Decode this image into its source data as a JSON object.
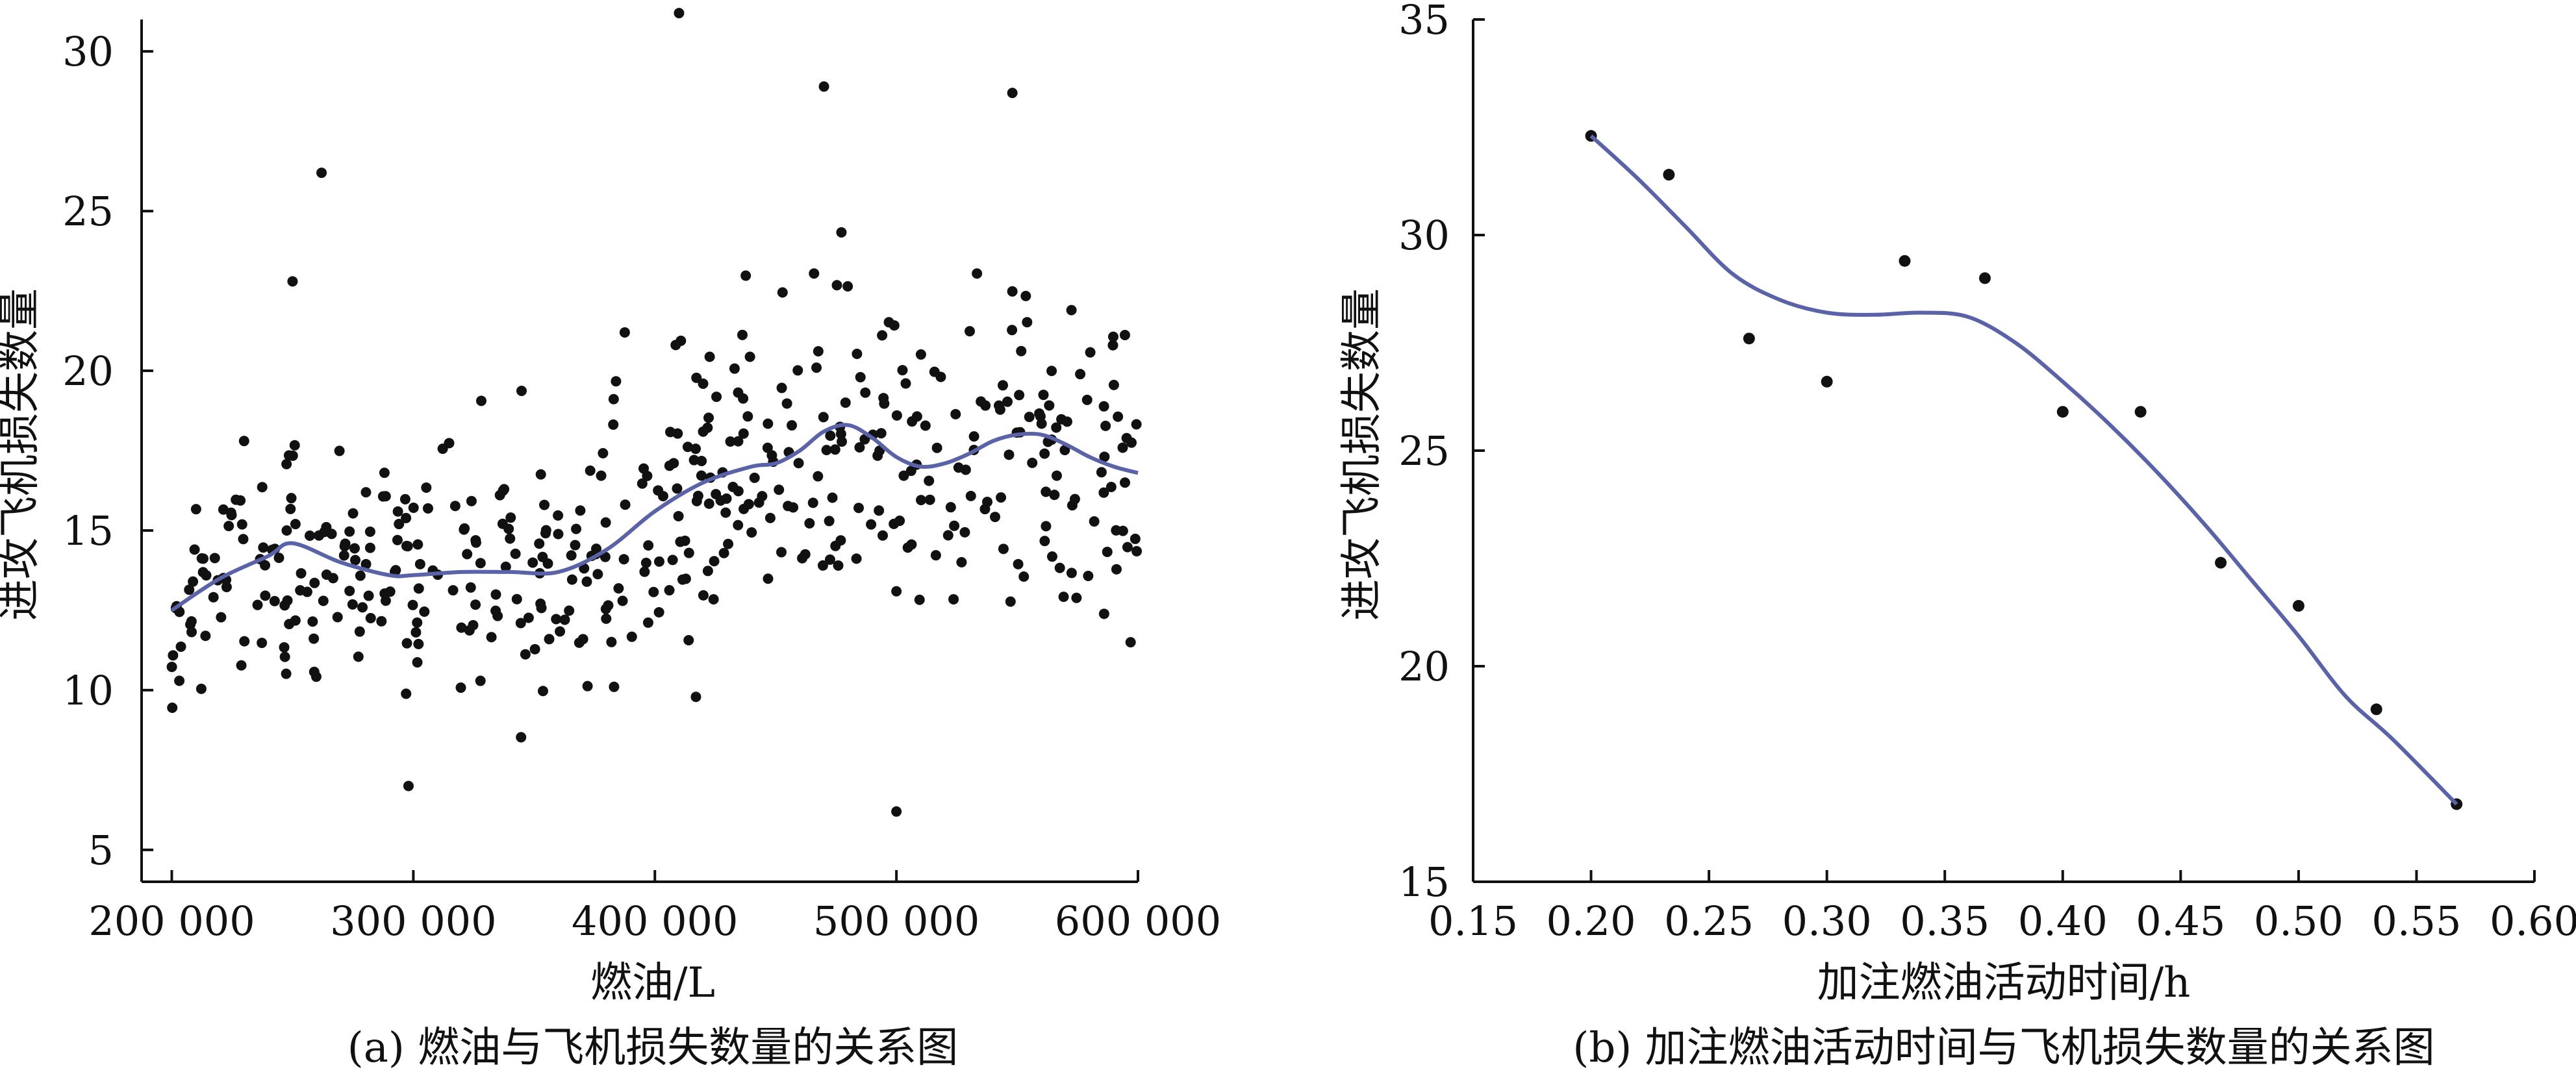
{
  "colors": {
    "points": "#111111",
    "smooth_line": "#5a62a8",
    "axes": "#111111",
    "background": "#ffffff"
  },
  "chart_data": [
    {
      "type": "scatter",
      "caption": "(a) 燃油与飞机损失数量的关系图",
      "xlabel": "燃油/L",
      "ylabel": "进攻飞机损失数量",
      "xlim": [
        187500,
        600000
      ],
      "ylim": [
        4,
        31
      ],
      "xticks": [
        200000,
        300000,
        400000,
        500000,
        600000
      ],
      "xtick_labels": [
        "200 000",
        "300 000",
        "400 000",
        "500 000",
        "600 000"
      ],
      "yticks": [
        5,
        10,
        15,
        20,
        25,
        30
      ],
      "ytick_labels": [
        "5",
        "10",
        "15",
        "20",
        "25",
        "30"
      ],
      "grid": false,
      "series": [
        {
          "kind": "points",
          "n": 480,
          "x_range": [
            200000,
            600000
          ],
          "y_range": [
            6.2,
            31.2
          ],
          "notable": [
            [
              410000,
              31.2
            ],
            [
              470000,
              28.9
            ],
            [
              548000,
              28.7
            ],
            [
              262000,
              26.2
            ],
            [
              250000,
              22.8
            ],
            [
              500000,
              6.2
            ],
            [
              298000,
              7.0
            ]
          ]
        },
        {
          "kind": "smooth",
          "x": [
            200000,
            220000,
            240000,
            250000,
            270000,
            290000,
            300000,
            320000,
            340000,
            360000,
            380000,
            400000,
            420000,
            440000,
            450000,
            460000,
            470000,
            480000,
            490000,
            500000,
            510000,
            520000,
            530000,
            540000,
            550000,
            560000,
            570000,
            580000,
            590000,
            600000
          ],
          "y": [
            12.5,
            13.5,
            14.2,
            14.6,
            14.0,
            13.6,
            13.6,
            13.7,
            13.7,
            13.7,
            14.4,
            15.6,
            16.5,
            17.0,
            17.1,
            17.5,
            18.1,
            18.3,
            17.9,
            17.3,
            17.0,
            17.1,
            17.4,
            17.8,
            18.0,
            18.0,
            17.7,
            17.3,
            17.0,
            16.8
          ]
        }
      ]
    },
    {
      "type": "scatter",
      "caption": "(b) 加注燃油活动时间与飞机损失数量的关系图",
      "xlabel": "加注燃油活动时间/h",
      "ylabel": "进攻飞机损失数量",
      "xlim": [
        0.15,
        0.6
      ],
      "ylim": [
        15,
        35
      ],
      "xticks": [
        0.15,
        0.2,
        0.25,
        0.3,
        0.35,
        0.4,
        0.45,
        0.5,
        0.55,
        0.6
      ],
      "xtick_labels": [
        "0.15",
        "0.20",
        "0.25",
        "0.30",
        "0.35",
        "0.40",
        "0.45",
        "0.50",
        "0.55",
        "0.60"
      ],
      "yticks": [
        15,
        20,
        25,
        30,
        35
      ],
      "ytick_labels": [
        "15",
        "20",
        "25",
        "30",
        "35"
      ],
      "grid": false,
      "series": [
        {
          "kind": "points",
          "x": [
            0.2,
            0.233,
            0.267,
            0.3,
            0.333,
            0.367,
            0.4,
            0.433,
            0.467,
            0.5,
            0.533,
            0.567
          ],
          "y": [
            32.3,
            31.4,
            27.6,
            26.6,
            29.4,
            29.0,
            25.9,
            25.9,
            22.4,
            21.4,
            19.0,
            16.8
          ]
        },
        {
          "kind": "smooth",
          "x": [
            0.2,
            0.22,
            0.24,
            0.26,
            0.28,
            0.3,
            0.32,
            0.34,
            0.36,
            0.38,
            0.4,
            0.42,
            0.44,
            0.46,
            0.48,
            0.5,
            0.52,
            0.54,
            0.567
          ],
          "y": [
            32.3,
            31.3,
            30.2,
            29.1,
            28.5,
            28.2,
            28.15,
            28.2,
            28.1,
            27.5,
            26.6,
            25.6,
            24.5,
            23.3,
            22.0,
            20.7,
            19.3,
            18.3,
            16.8
          ]
        }
      ]
    }
  ]
}
